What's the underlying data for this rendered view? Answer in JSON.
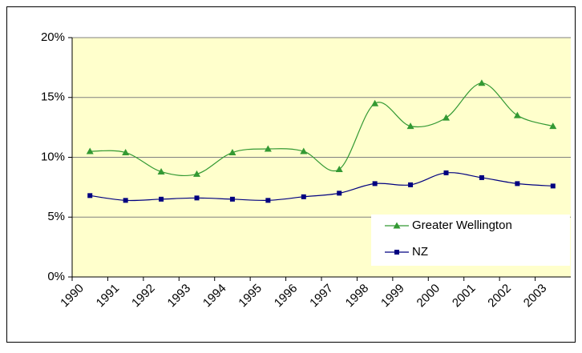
{
  "chart_data": {
    "type": "line",
    "categories": [
      "1990",
      "1991",
      "1992",
      "1993",
      "1994",
      "1995",
      "1996",
      "1997",
      "1998",
      "1999",
      "2000",
      "2001",
      "2002",
      "2003"
    ],
    "series": [
      {
        "name": "Greater Wellington",
        "color": "#339933",
        "marker": "triangle",
        "values": [
          10.5,
          10.4,
          8.8,
          8.6,
          10.4,
          10.7,
          10.5,
          9.0,
          14.5,
          12.6,
          13.3,
          16.2,
          13.5,
          12.6
        ]
      },
      {
        "name": "NZ",
        "color": "#000080",
        "marker": "square",
        "values": [
          6.8,
          6.4,
          6.5,
          6.6,
          6.5,
          6.4,
          6.7,
          7.0,
          7.8,
          7.7,
          8.7,
          8.3,
          7.8,
          7.6
        ]
      }
    ],
    "ylim": [
      0,
      20
    ],
    "yticks": [
      {
        "value": 0,
        "label": "0%"
      },
      {
        "value": 5,
        "label": "5%"
      },
      {
        "value": 10,
        "label": "10%"
      },
      {
        "value": 15,
        "label": "15%"
      },
      {
        "value": 20,
        "label": "20%"
      }
    ],
    "grid": true,
    "smooth": true,
    "plot_background": "#ffffcc",
    "legend": "right"
  }
}
